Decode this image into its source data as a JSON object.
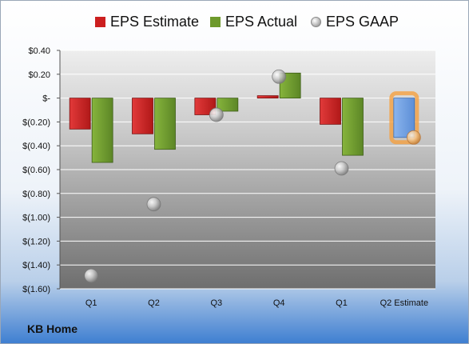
{
  "chart_data": {
    "type": "bar",
    "categories": [
      "Q1",
      "Q2",
      "Q3",
      "Q4",
      "Q1",
      "Q2 Estimate"
    ],
    "series": [
      {
        "name": "EPS Estimate",
        "kind": "bar",
        "color": "#cc1f1f",
        "values": [
          -0.26,
          -0.3,
          -0.14,
          0.02,
          -0.22,
          null
        ]
      },
      {
        "name": "EPS Actual",
        "kind": "bar",
        "color": "#6e9a2c",
        "values": [
          -0.54,
          -0.43,
          -0.11,
          0.21,
          -0.48,
          null
        ]
      },
      {
        "name": "EPS GAAP",
        "kind": "marker",
        "color": "#a8a8a8",
        "values": [
          -1.49,
          -0.89,
          -0.14,
          0.18,
          -0.59,
          -0.33
        ]
      }
    ],
    "estimate_bar": {
      "category": "Q2 Estimate",
      "value": -0.33,
      "color": "#6f9fe0",
      "highlight": "#f5a040"
    },
    "ylim": [
      -1.6,
      0.4
    ],
    "y_ticks": [
      0.4,
      0.2,
      0,
      -0.2,
      -0.4,
      -0.6,
      -0.8,
      -1.0,
      -1.2,
      -1.4,
      -1.6
    ],
    "y_tick_labels": [
      "$0.40",
      "$0.20",
      "$-",
      "$(0.20)",
      "$(0.40)",
      "$(0.60)",
      "$(0.80)",
      "$(1.00)",
      "$(1.20)",
      "$(1.40)",
      "$(1.60)"
    ],
    "grid": true,
    "legend_position": "top",
    "title": "",
    "xlabel": "",
    "ylabel": ""
  },
  "company": "KB Home"
}
